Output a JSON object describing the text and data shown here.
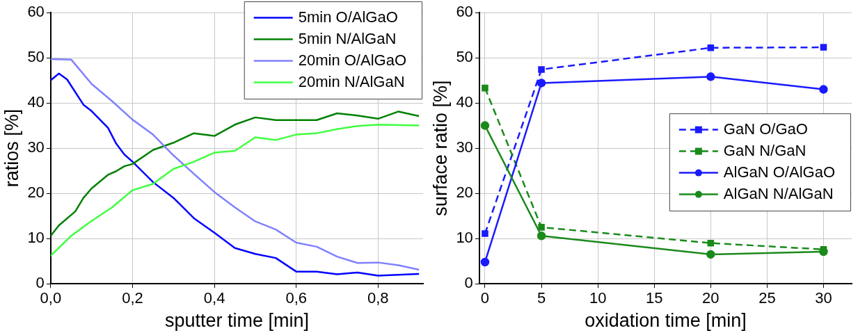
{
  "chart_data": [
    {
      "type": "line",
      "xlabel": "sputter time [min]",
      "ylabel": "ratios [%]",
      "xlim": [
        0,
        0.91
      ],
      "ylim": [
        0,
        60
      ],
      "xticks": [
        {
          "value": 0,
          "label": "0,0"
        },
        {
          "value": 0.2,
          "label": "0,2"
        },
        {
          "value": 0.4,
          "label": "0,4"
        },
        {
          "value": 0.6,
          "label": "0,6"
        },
        {
          "value": 0.8,
          "label": "0,8"
        }
      ],
      "yticks": [
        0,
        10,
        20,
        30,
        40,
        50,
        60
      ],
      "grid": true,
      "legend": "top right",
      "marker": "none",
      "line_style": "solid",
      "series": [
        {
          "name": "5min O/AlGaO",
          "color": "#0000ff",
          "x": [
            0,
            0.02,
            0.04,
            0.08,
            0.1,
            0.14,
            0.16,
            0.18,
            0.2,
            0.25,
            0.3,
            0.35,
            0.4,
            0.45,
            0.5,
            0.55,
            0.6,
            0.65,
            0.7,
            0.75,
            0.8,
            0.9
          ],
          "values": [
            45,
            46.5,
            45.2,
            39.6,
            38.2,
            34.5,
            31,
            28.6,
            27,
            22.5,
            19,
            14.5,
            11.3,
            7.9,
            6.6,
            5.7,
            2.7,
            2.7,
            2.1,
            2.5,
            1.8,
            2.2
          ]
        },
        {
          "name": "5min N/AlGaN",
          "color": "#008000",
          "x": [
            0,
            0.02,
            0.06,
            0.08,
            0.1,
            0.14,
            0.16,
            0.18,
            0.2,
            0.25,
            0.3,
            0.35,
            0.4,
            0.45,
            0.5,
            0.55,
            0.6,
            0.65,
            0.7,
            0.75,
            0.8,
            0.85,
            0.9
          ],
          "values": [
            10.6,
            12.9,
            16,
            19,
            21.1,
            24.1,
            24.9,
            26,
            26.5,
            29.6,
            31.2,
            33.3,
            32.7,
            35.2,
            36.8,
            36.2,
            36.2,
            36.2,
            37.7,
            37.2,
            36.5,
            38.1,
            37.1
          ]
        },
        {
          "name": "20min O/AlGaO",
          "color": "#8080ff",
          "x": [
            0,
            0.05,
            0.1,
            0.15,
            0.2,
            0.25,
            0.3,
            0.35,
            0.4,
            0.45,
            0.5,
            0.55,
            0.6,
            0.65,
            0.7,
            0.75,
            0.8,
            0.85,
            0.9
          ],
          "values": [
            49.7,
            49.6,
            44.2,
            40.4,
            36.3,
            33,
            28.4,
            24.3,
            20.3,
            16.9,
            13.8,
            12,
            9.1,
            8.2,
            6,
            4.6,
            4.7,
            4.1,
            3.1
          ]
        },
        {
          "name": "20min N/AlGaN",
          "color": "#40ff40",
          "x": [
            0,
            0.05,
            0.1,
            0.15,
            0.2,
            0.25,
            0.3,
            0.35,
            0.4,
            0.45,
            0.5,
            0.55,
            0.6,
            0.65,
            0.7,
            0.75,
            0.8,
            0.9
          ],
          "values": [
            6.2,
            10.6,
            13.9,
            16.9,
            20.7,
            22.1,
            25.4,
            27,
            29,
            29.4,
            32.4,
            31.8,
            33,
            33.3,
            34.2,
            34.9,
            35.2,
            35
          ]
        }
      ]
    },
    {
      "type": "line",
      "xlabel": "oxidation time [min]",
      "ylabel": "surface ratio [%]",
      "xlim": [
        -0.5,
        32.5
      ],
      "ylim": [
        0,
        60
      ],
      "xticks": [
        0,
        5,
        10,
        15,
        20,
        25,
        30
      ],
      "yticks": [
        0,
        10,
        20,
        30,
        40,
        50,
        60
      ],
      "grid": true,
      "legend": "right",
      "series": [
        {
          "name": "GaN O/GaO",
          "color": "#1a1aff",
          "marker": "square",
          "line_style": "dashed",
          "x": [
            0,
            5,
            20,
            30
          ],
          "values": [
            11.1,
            47.4,
            52.2,
            52.3
          ]
        },
        {
          "name": "GaN N/GaN",
          "color": "#1a8a1a",
          "marker": "square",
          "line_style": "dashed",
          "x": [
            0,
            5,
            20,
            30
          ],
          "values": [
            43.3,
            12.5,
            9.0,
            7.6
          ]
        },
        {
          "name": "AlGaN O/AlGaO",
          "color": "#1a1aff",
          "marker": "circle",
          "line_style": "solid",
          "x": [
            0,
            5,
            20,
            30
          ],
          "values": [
            4.8,
            44.4,
            45.8,
            43.0
          ]
        },
        {
          "name": "AlGaN N/AlGaN",
          "color": "#1a8a1a",
          "marker": "circle",
          "line_style": "solid",
          "x": [
            0,
            5,
            20,
            30
          ],
          "values": [
            35.0,
            10.6,
            6.5,
            7.1
          ]
        }
      ]
    }
  ]
}
